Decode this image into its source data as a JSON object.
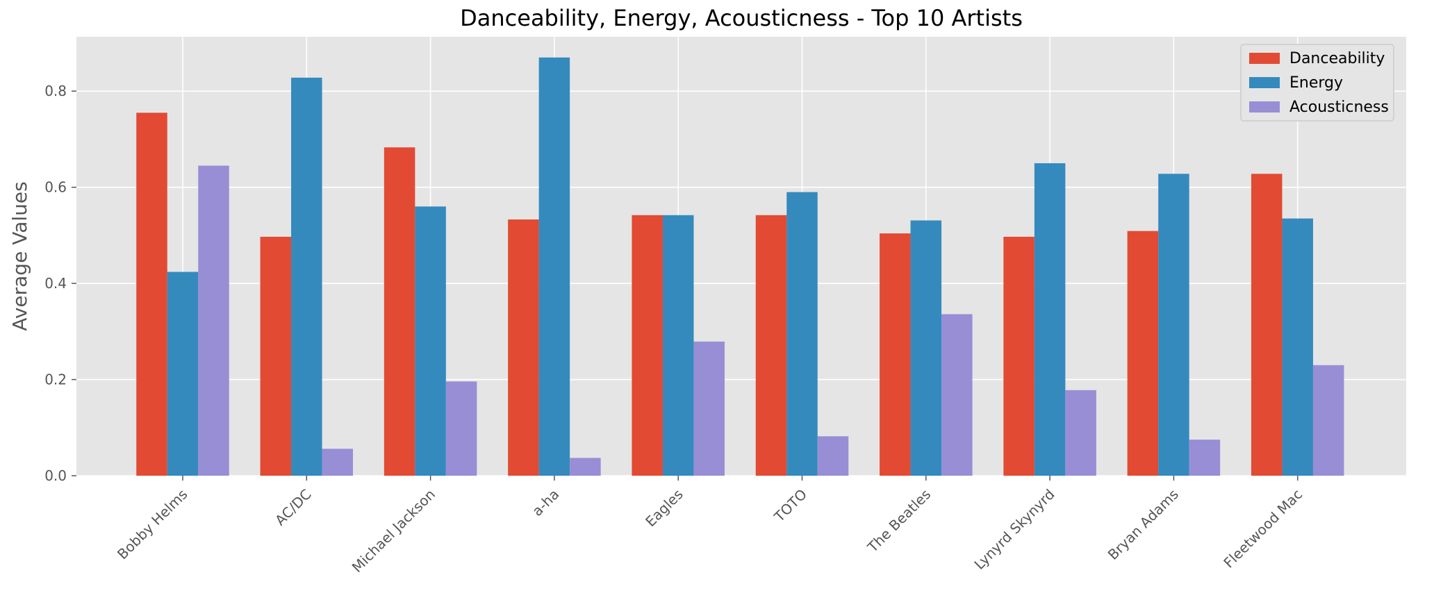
{
  "chart_data": {
    "type": "bar",
    "title": "Danceability, Energy, Acousticness - Top 10 Artists",
    "xlabel": "",
    "ylabel": "Average Values",
    "categories": [
      "Bobby Helms",
      "AC/DC",
      "Michael Jackson",
      "a-ha",
      "Eagles",
      "TOTO",
      "The Beatles",
      "Lynyrd Skynyrd",
      "Bryan Adams",
      "Fleetwood Mac"
    ],
    "series": [
      {
        "name": "Danceability",
        "color": "#E24A33",
        "values": [
          0.755,
          0.497,
          0.683,
          0.533,
          0.542,
          0.542,
          0.504,
          0.497,
          0.509,
          0.628
        ]
      },
      {
        "name": "Energy",
        "color": "#348ABD",
        "values": [
          0.424,
          0.828,
          0.56,
          0.87,
          0.542,
          0.59,
          0.531,
          0.65,
          0.628,
          0.535
        ]
      },
      {
        "name": "Acousticness",
        "color": "#988ED5",
        "values": [
          0.645,
          0.056,
          0.196,
          0.037,
          0.279,
          0.082,
          0.336,
          0.178,
          0.075,
          0.23
        ]
      }
    ],
    "ylim": [
      0,
      0.913
    ],
    "yticks": [
      0.0,
      0.2,
      0.4,
      0.6,
      0.8
    ],
    "ytick_labels": [
      "0.0",
      "0.2",
      "0.4",
      "0.6",
      "0.8"
    ],
    "grid": true,
    "legend_position": "top-right",
    "background": "#E5E5E5"
  }
}
